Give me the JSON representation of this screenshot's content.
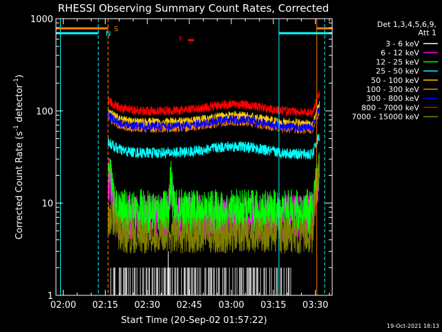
{
  "chart_data": {
    "type": "line",
    "title": "RHESSI Observing Summary Count Rates, Corrected",
    "xlabel": "Start Time (20-Sep-02 01:57:22)",
    "ylabel_parts": [
      "Corrected Count Rate (s",
      "-1",
      " detector",
      "-1",
      ")"
    ],
    "x_ticks": [
      "02:00",
      "02:15",
      "02:30",
      "02:45",
      "03:00",
      "03:15",
      "03:30"
    ],
    "x_tick_minutes": [
      120,
      135,
      150,
      165,
      180,
      195,
      210
    ],
    "xlim_minutes": [
      117.4,
      216
    ],
    "y_scale": "log",
    "ylim": [
      1,
      1000
    ],
    "y_ticks": [
      "1",
      "10",
      "100",
      "1000"
    ],
    "legend_header": [
      "Det 1,3,4,5,6,9,",
      "Att 1"
    ],
    "series": [
      {
        "name": "3 - 6 keV",
        "color": "#000000",
        "level": 1.5,
        "noise": 0.6
      },
      {
        "name": "6 - 12 keV",
        "color": "#ff00ff",
        "level": 7.0,
        "noise": 0.25
      },
      {
        "name": "12 - 25 keV",
        "color": "#00ff00",
        "level": 8.0,
        "noise": 0.25
      },
      {
        "name": "25 - 50 keV",
        "color": "#00ffff",
        "level": 35,
        "noise": 0.06
      },
      {
        "name": "50 - 100 keV",
        "color": "#ffcc00",
        "level": 75,
        "noise": 0.05
      },
      {
        "name": "100 - 300 keV",
        "color": "#ff8000",
        "level": 65,
        "noise": 0.05
      },
      {
        "name": "300 - 800 keV",
        "color": "#0000ff",
        "level": 68,
        "noise": 0.05
      },
      {
        "name": "800 - 7000 keV",
        "color": "#ff0000",
        "level": 100,
        "noise": 0.05
      },
      {
        "name": "7000 - 15000 keV",
        "color": "#808000",
        "level": 4.5,
        "noise": 0.2
      }
    ],
    "flags": [
      {
        "label": "S",
        "color": "#ff8000"
      },
      {
        "label": "N",
        "color": "#00ffff"
      },
      {
        "label": "F",
        "color": "#ff0000"
      }
    ],
    "vlines_minutes": {
      "cyan": [
        119.0,
        132.5,
        197.0,
        213.3
      ],
      "orange": [
        136.0,
        210.5
      ]
    },
    "footer_timestamp": "19-Oct-2021 18:13"
  }
}
